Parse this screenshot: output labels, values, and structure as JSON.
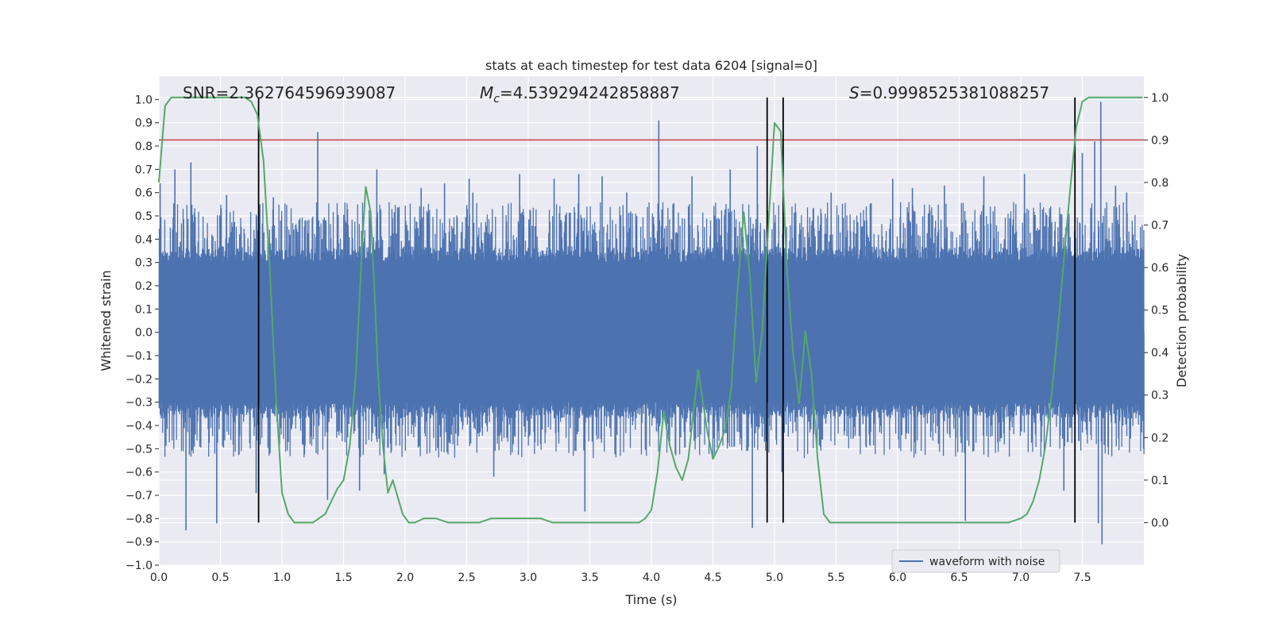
{
  "chart_data": {
    "type": "line",
    "title": "stats at each timestep for test data 6204 [signal=0]",
    "xlabel": "Time (s)",
    "ylabel_left": "Whitened strain",
    "ylabel_right": "Detection probability",
    "xlim": [
      0,
      8
    ],
    "ylim_left": [
      -1.0,
      1.1
    ],
    "ylim_right": [
      -0.1,
      1.05
    ],
    "x_ticks": [
      0.0,
      0.5,
      1.0,
      1.5,
      2.0,
      2.5,
      3.0,
      3.5,
      4.0,
      4.5,
      5.0,
      5.5,
      6.0,
      6.5,
      7.0,
      7.5
    ],
    "x_tick_labels": [
      "0.0",
      "0.5",
      "1.0",
      "1.5",
      "2.0",
      "2.5",
      "3.0",
      "3.5",
      "4.0",
      "4.5",
      "5.0",
      "5.5",
      "6.0",
      "6.5",
      "7.0",
      "7.5"
    ],
    "y_left_ticks": [
      -1.0,
      -0.9,
      -0.8,
      -0.7,
      -0.6,
      -0.5,
      -0.4,
      -0.3,
      -0.2,
      -0.1,
      0.0,
      0.1,
      0.2,
      0.3,
      0.4,
      0.5,
      0.6,
      0.7,
      0.8,
      0.9,
      1.0
    ],
    "y_left_tick_labels": [
      "−1.0",
      "−0.9",
      "−0.8",
      "−0.7",
      "−0.6",
      "−0.5",
      "−0.4",
      "−0.3",
      "−0.2",
      "−0.1",
      "0.0",
      "0.1",
      "0.2",
      "0.3",
      "0.4",
      "0.5",
      "0.6",
      "0.7",
      "0.8",
      "0.9",
      "1.0"
    ],
    "y_right_ticks": [
      0.0,
      0.1,
      0.2,
      0.3,
      0.4,
      0.5,
      0.6,
      0.7,
      0.8,
      0.9,
      1.0
    ],
    "y_right_tick_labels": [
      "0.0",
      "0.1",
      "0.2",
      "0.3",
      "0.4",
      "0.5",
      "0.6",
      "0.7",
      "0.8",
      "0.9",
      "1.0"
    ],
    "grid": true,
    "annotations": {
      "snr": "SNR=2.362764596939087",
      "mc_symbol": "M",
      "mc_sub": "c",
      "mc_value": "=4.539294242858887",
      "s_symbol": "S",
      "s_value": "=0.9998525381088257"
    },
    "threshold_line": {
      "probability": 0.9,
      "color": "#c44e52"
    },
    "vertical_lines": [
      0.81,
      4.94,
      5.07,
      7.44
    ],
    "vertical_line_span_probability": [
      0.0,
      1.0
    ],
    "legend": {
      "label": "waveform with noise",
      "placement": "lower-right"
    },
    "waveform": {
      "name": "waveform with noise",
      "color": "#4c72b0",
      "core_amplitude": 0.3,
      "spikes": [
        {
          "t": 0.01,
          "v": 0.64
        },
        {
          "t": 0.13,
          "v": 0.7
        },
        {
          "t": 0.22,
          "v": -0.85
        },
        {
          "t": 0.26,
          "v": 0.73
        },
        {
          "t": 0.47,
          "v": -0.82
        },
        {
          "t": 0.55,
          "v": 0.59
        },
        {
          "t": 0.79,
          "v": -0.69
        },
        {
          "t": 0.82,
          "v": 0.55
        },
        {
          "t": 0.93,
          "v": 0.58
        },
        {
          "t": 1.29,
          "v": 0.86
        },
        {
          "t": 1.37,
          "v": -0.72
        },
        {
          "t": 1.63,
          "v": -0.68
        },
        {
          "t": 1.77,
          "v": 0.7
        },
        {
          "t": 1.83,
          "v": -0.61
        },
        {
          "t": 2.13,
          "v": 0.62
        },
        {
          "t": 2.32,
          "v": 0.64
        },
        {
          "t": 2.52,
          "v": 0.66
        },
        {
          "t": 2.55,
          "v": 0.6
        },
        {
          "t": 2.72,
          "v": -0.62
        },
        {
          "t": 2.93,
          "v": 0.68
        },
        {
          "t": 3.21,
          "v": 0.66
        },
        {
          "t": 3.41,
          "v": 0.68
        },
        {
          "t": 3.46,
          "v": -0.77
        },
        {
          "t": 3.6,
          "v": 0.67
        },
        {
          "t": 3.8,
          "v": 0.6
        },
        {
          "t": 4.06,
          "v": 0.91
        },
        {
          "t": 4.33,
          "v": 0.67
        },
        {
          "t": 4.64,
          "v": 0.7
        },
        {
          "t": 4.82,
          "v": -0.84
        },
        {
          "t": 4.86,
          "v": 0.8
        },
        {
          "t": 5.06,
          "v": -0.6
        },
        {
          "t": 5.46,
          "v": 0.6
        },
        {
          "t": 5.96,
          "v": 0.66
        },
        {
          "t": 6.12,
          "v": 0.62
        },
        {
          "t": 6.38,
          "v": 0.63
        },
        {
          "t": 6.55,
          "v": -0.81
        },
        {
          "t": 6.7,
          "v": 0.67
        },
        {
          "t": 7.03,
          "v": 0.68
        },
        {
          "t": 7.09,
          "v": -0.17
        },
        {
          "t": 7.35,
          "v": -0.68
        },
        {
          "t": 7.5,
          "v": 0.77
        },
        {
          "t": 7.6,
          "v": 0.82
        },
        {
          "t": 7.63,
          "v": -0.82
        },
        {
          "t": 7.65,
          "v": 0.99
        },
        {
          "t": 7.66,
          "v": -0.91
        },
        {
          "t": 7.77,
          "v": 0.63
        },
        {
          "t": 7.86,
          "v": 0.6
        }
      ]
    },
    "probability_series": {
      "color": "#55a868",
      "x": [
        0.0,
        0.05,
        0.1,
        0.2,
        0.3,
        0.4,
        0.5,
        0.6,
        0.7,
        0.75,
        0.8,
        0.85,
        0.9,
        0.95,
        1.0,
        1.05,
        1.1,
        1.15,
        1.2,
        1.25,
        1.3,
        1.35,
        1.4,
        1.45,
        1.5,
        1.55,
        1.6,
        1.65,
        1.68,
        1.72,
        1.75,
        1.78,
        1.82,
        1.86,
        1.9,
        1.94,
        1.98,
        2.03,
        2.08,
        2.15,
        2.25,
        2.35,
        2.5,
        2.6,
        2.7,
        2.8,
        2.9,
        3.0,
        3.1,
        3.2,
        3.3,
        3.5,
        3.7,
        3.9,
        3.95,
        4.0,
        4.05,
        4.1,
        4.15,
        4.2,
        4.25,
        4.3,
        4.38,
        4.45,
        4.5,
        4.55,
        4.6,
        4.65,
        4.7,
        4.75,
        4.8,
        4.85,
        4.9,
        4.95,
        5.0,
        5.05,
        5.1,
        5.15,
        5.2,
        5.25,
        5.3,
        5.35,
        5.4,
        5.45,
        5.5,
        5.7,
        5.9,
        6.3,
        6.6,
        6.9,
        7.0,
        7.05,
        7.1,
        7.15,
        7.2,
        7.25,
        7.3,
        7.35,
        7.4,
        7.45,
        7.5,
        7.55,
        7.6,
        7.65,
        7.7,
        7.8,
        7.9,
        7.99
      ],
      "y": [
        0.8,
        0.98,
        1.0,
        1.0,
        1.0,
        1.0,
        1.0,
        1.0,
        1.0,
        0.99,
        0.96,
        0.85,
        0.6,
        0.3,
        0.07,
        0.02,
        0.0,
        0.0,
        0.0,
        0.0,
        0.01,
        0.02,
        0.05,
        0.08,
        0.1,
        0.18,
        0.35,
        0.65,
        0.79,
        0.73,
        0.55,
        0.35,
        0.18,
        0.07,
        0.1,
        0.06,
        0.02,
        0.0,
        0.0,
        0.01,
        0.01,
        0.0,
        0.0,
        0.0,
        0.01,
        0.01,
        0.01,
        0.01,
        0.01,
        0.0,
        0.0,
        0.0,
        0.0,
        0.0,
        0.01,
        0.03,
        0.12,
        0.26,
        0.18,
        0.13,
        0.1,
        0.15,
        0.36,
        0.22,
        0.15,
        0.18,
        0.22,
        0.32,
        0.55,
        0.73,
        0.58,
        0.33,
        0.45,
        0.7,
        0.94,
        0.92,
        0.6,
        0.4,
        0.28,
        0.45,
        0.35,
        0.15,
        0.02,
        0.0,
        0.0,
        0.0,
        0.0,
        0.0,
        0.0,
        0.0,
        0.01,
        0.02,
        0.05,
        0.1,
        0.18,
        0.3,
        0.45,
        0.62,
        0.78,
        0.93,
        0.99,
        1.0,
        1.0,
        1.0,
        1.0,
        1.0,
        1.0,
        1.0
      ]
    }
  }
}
